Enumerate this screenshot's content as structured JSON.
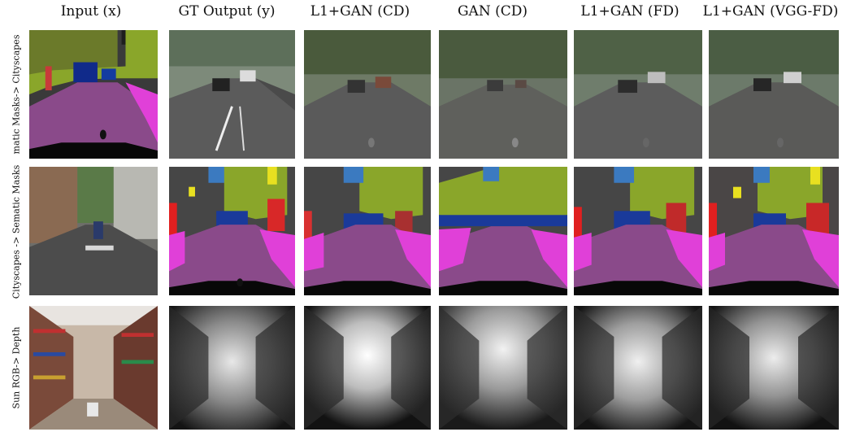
{
  "figure": {
    "column_headers": [
      "Input (x)",
      "GT Output (y)",
      "L1+GAN (CD)",
      "GAN (CD)",
      "L1+GAN (FD)",
      "L1+GAN (VGG-FD)"
    ],
    "row_labels": [
      "matic Masks-> Cityscapes",
      "Cityscapes -> Sematic Masks",
      "Sun RGB-> Depth"
    ]
  }
}
